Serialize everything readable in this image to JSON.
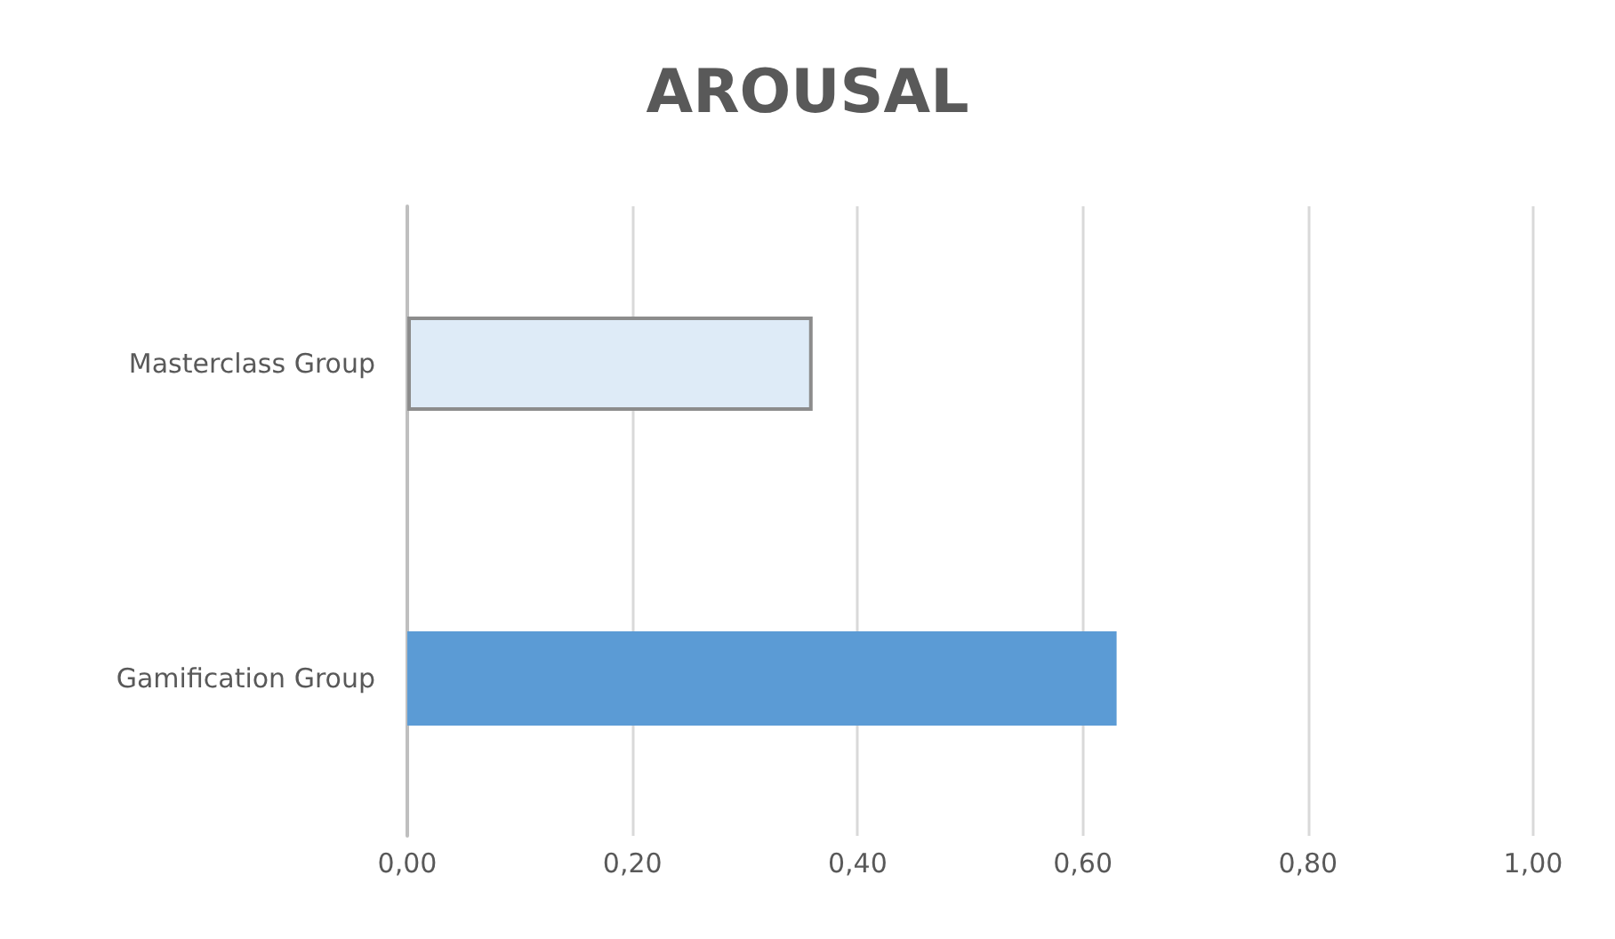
{
  "chart_data": {
    "type": "bar",
    "orientation": "horizontal",
    "title": "AROUSAL",
    "categories": [
      "Masterclass Group",
      "Gamification Group"
    ],
    "values": [
      0.36,
      0.63
    ],
    "colors": [
      "#deebf7",
      "#5b9bd5"
    ],
    "xlim": [
      0,
      1
    ],
    "xticks": [
      {
        "value": 0,
        "label": "0,00"
      },
      {
        "value": 0.2,
        "label": "0,20"
      },
      {
        "value": 0.4,
        "label": "0,40"
      },
      {
        "value": 0.6,
        "label": "0,60"
      },
      {
        "value": 0.8,
        "label": "0,80"
      },
      {
        "value": 1,
        "label": "1,00"
      }
    ],
    "grid": "x"
  }
}
